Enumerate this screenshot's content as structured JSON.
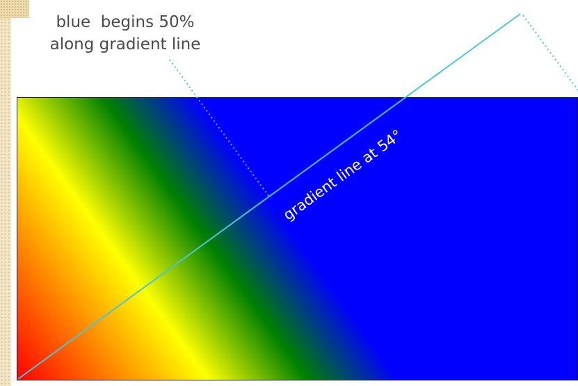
{
  "annotation": {
    "line1": "blue  begins 50%",
    "line2": "along gradient line"
  },
  "gradient_line": {
    "label": "gradient line at 54°",
    "angle_deg": 54
  },
  "gradient": {
    "stops": [
      {
        "color": "#ff0000",
        "position_percent": 0
      },
      {
        "color": "#ffff00",
        "position_percent": 25
      },
      {
        "color": "#008000",
        "position_percent": 38
      },
      {
        "color": "#0000ff",
        "position_percent": 50
      },
      {
        "color": "#0000ff",
        "position_percent": 100
      }
    ]
  },
  "colors": {
    "gradient_line": "#4cc4d6",
    "guide_dots": "#4cc4d6",
    "caption_text": "#4a4a4a"
  }
}
